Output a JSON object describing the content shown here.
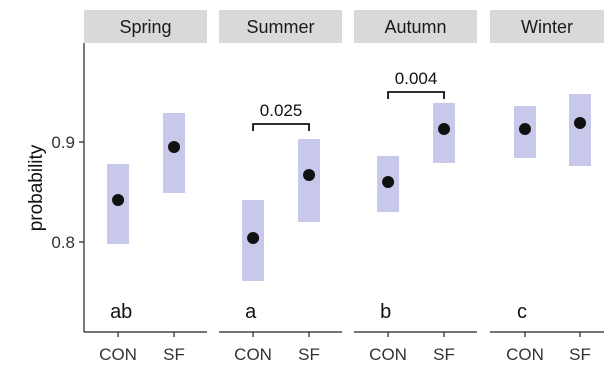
{
  "chart_data": {
    "type": "point-range",
    "ylabel": "probability",
    "ylim": [
      0.7,
      1.0
    ],
    "yticks": [
      0.8,
      0.9
    ],
    "ytick_labels": [
      "0.8",
      "0.9"
    ],
    "categories": [
      "CON",
      "SF"
    ],
    "colors": {
      "ci_band": "#c8c8ea",
      "point": "#111111",
      "strip": "#d9d9d9"
    },
    "panels": [
      {
        "label": "Spring",
        "letter": "ab",
        "points": [
          {
            "group": "CON",
            "mean": 0.842,
            "lower": 0.798,
            "upper": 0.878
          },
          {
            "group": "SF",
            "mean": 0.895,
            "lower": 0.849,
            "upper": 0.929
          }
        ],
        "comparison": null
      },
      {
        "label": "Summer",
        "letter": "a",
        "points": [
          {
            "group": "CON",
            "mean": 0.804,
            "lower": 0.761,
            "upper": 0.842
          },
          {
            "group": "SF",
            "mean": 0.867,
            "lower": 0.82,
            "upper": 0.903
          }
        ],
        "comparison": {
          "p": "0.025",
          "y": 0.918
        }
      },
      {
        "label": "Autumn",
        "letter": "b",
        "points": [
          {
            "group": "CON",
            "mean": 0.86,
            "lower": 0.83,
            "upper": 0.886
          },
          {
            "group": "SF",
            "mean": 0.913,
            "lower": 0.879,
            "upper": 0.939
          }
        ],
        "comparison": {
          "p": "0.004",
          "y": 0.95
        }
      },
      {
        "label": "Winter",
        "letter": "c",
        "points": [
          {
            "group": "CON",
            "mean": 0.913,
            "lower": 0.884,
            "upper": 0.936
          },
          {
            "group": "SF",
            "mean": 0.919,
            "lower": 0.876,
            "upper": 0.948
          }
        ],
        "comparison": null
      }
    ]
  }
}
